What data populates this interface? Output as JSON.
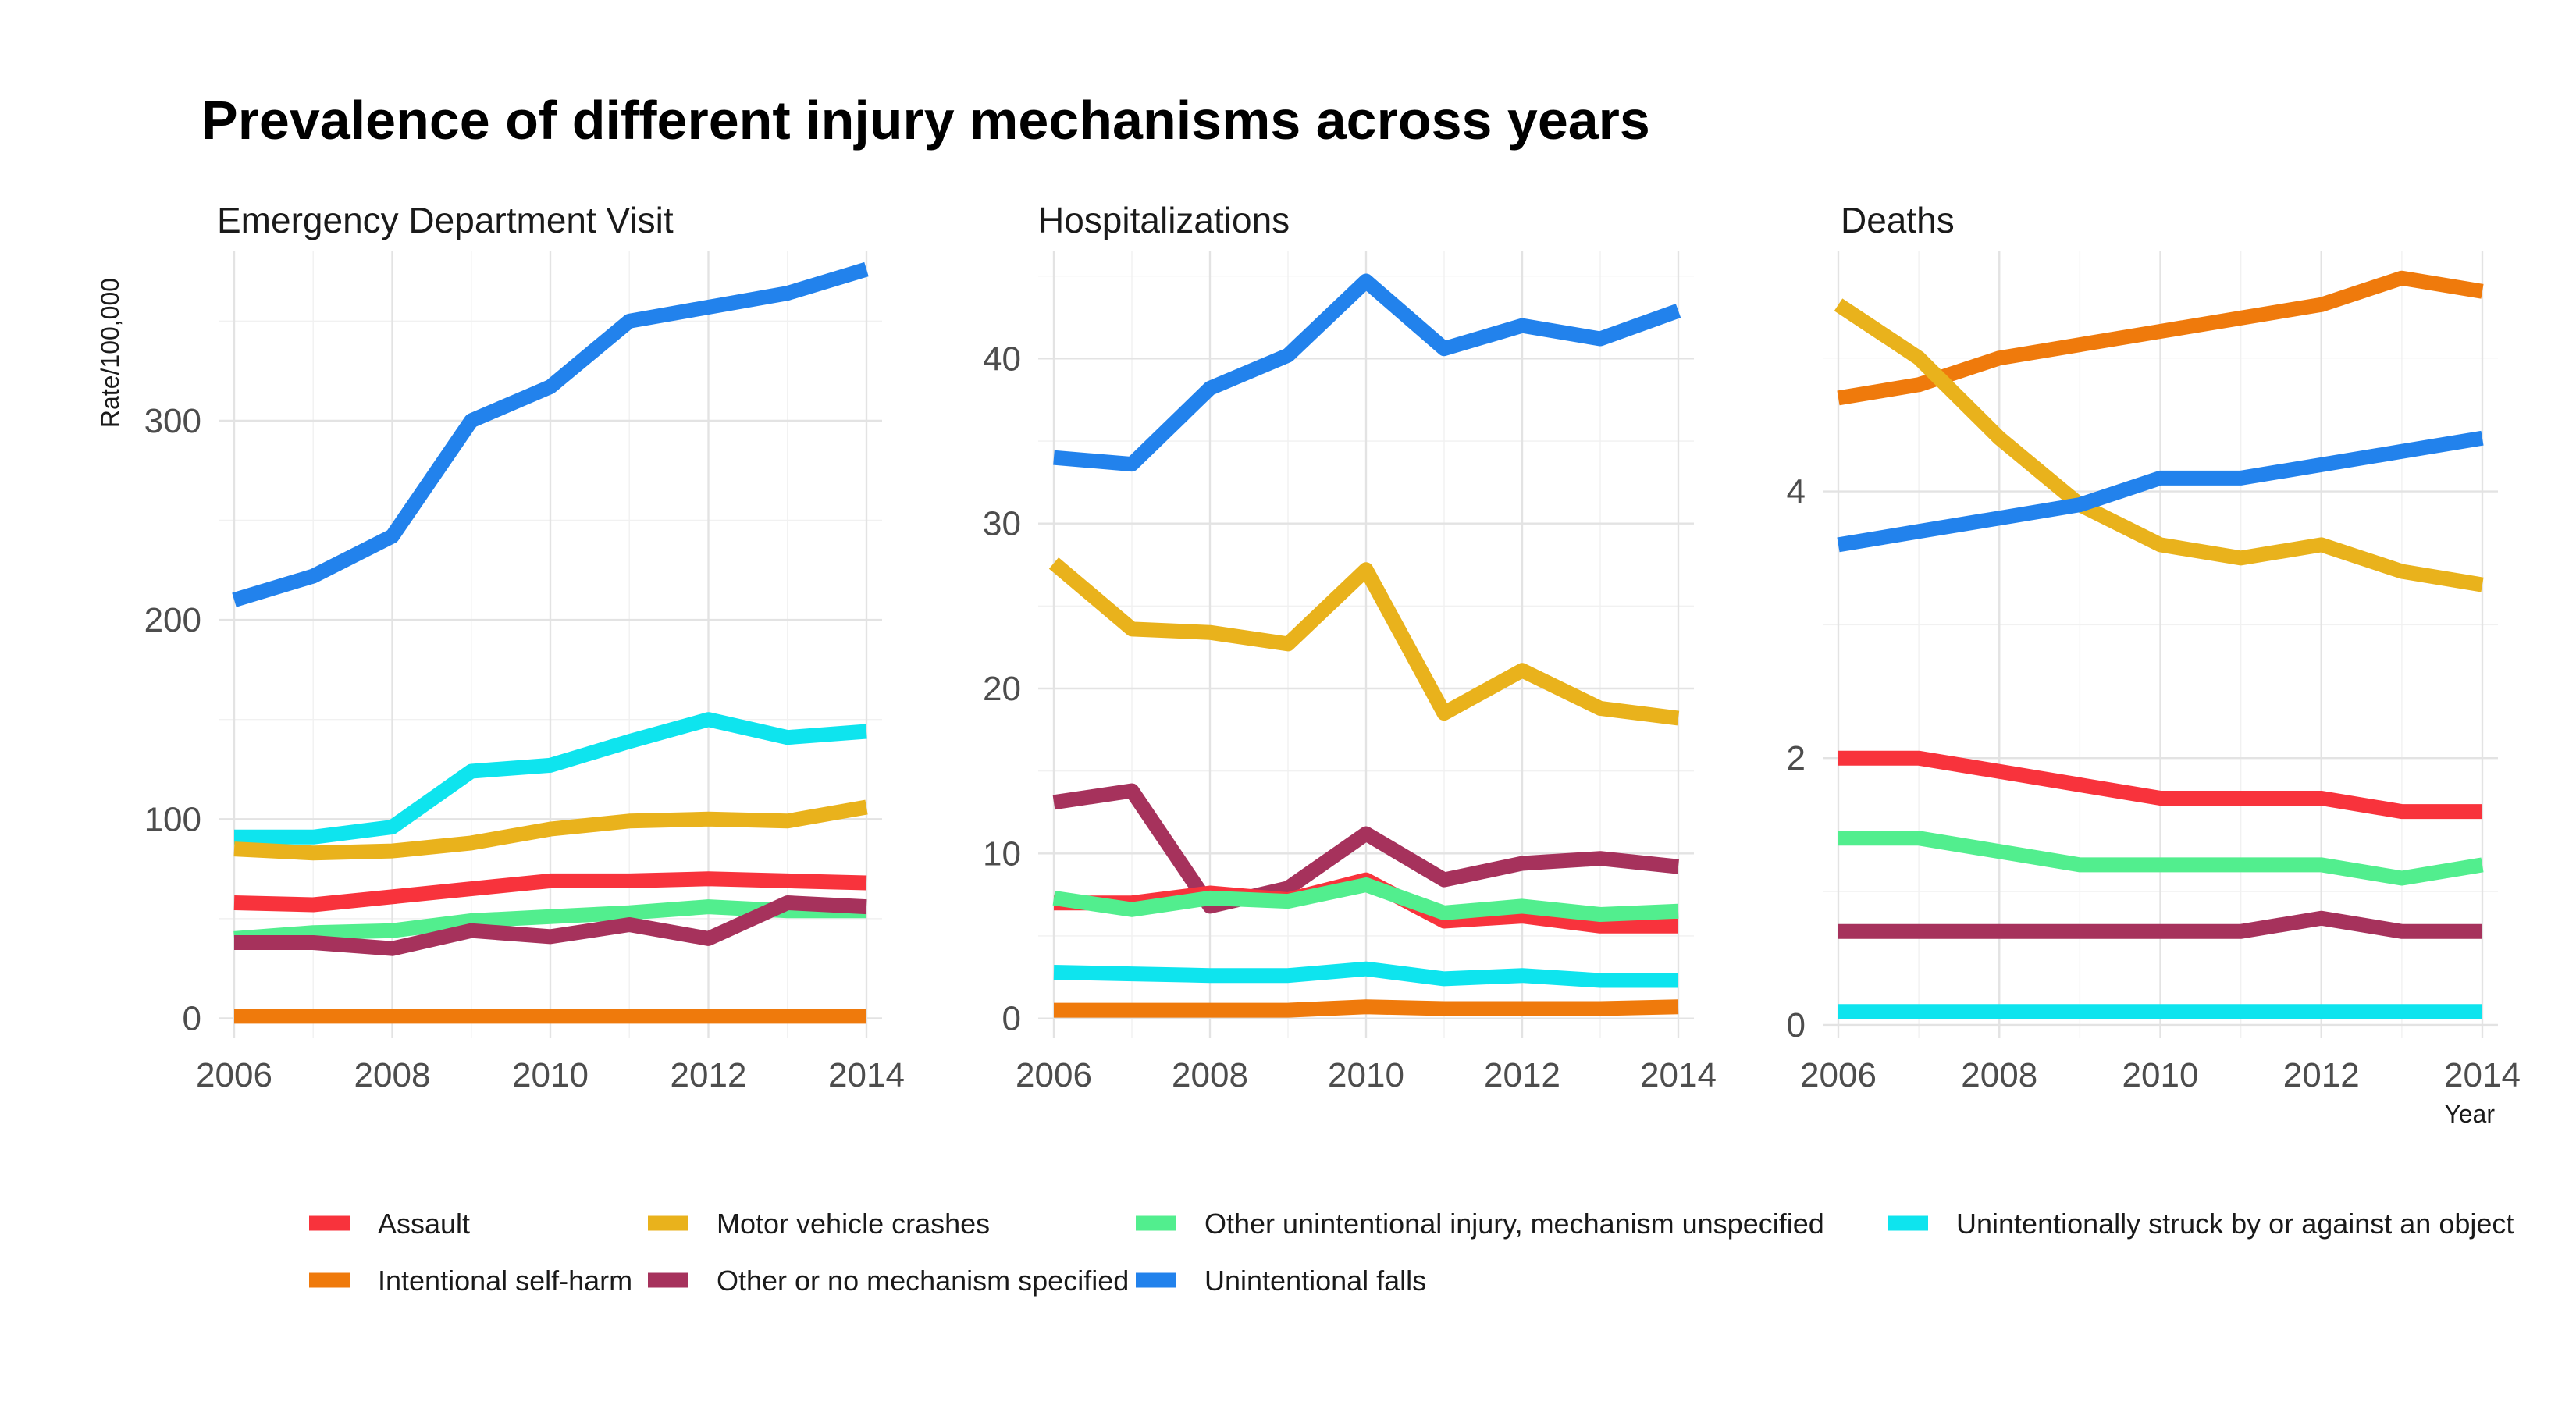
{
  "chart_data": {
    "type": "line",
    "title": "Prevalence of different injury mechanisms across years",
    "ylabel": "Rate/100,000",
    "xlabel": "Year",
    "x": [
      2006,
      2007,
      2008,
      2009,
      2010,
      2011,
      2012,
      2013,
      2014
    ],
    "x_ticks": [
      2006,
      2008,
      2010,
      2012,
      2014
    ],
    "x_tick_labels": [
      "2006",
      "2008",
      "2010",
      "2012",
      "2014"
    ],
    "legend_position": "bottom",
    "grid": true,
    "legend": [
      {
        "name": "Assault",
        "color": "#f8333c"
      },
      {
        "name": "Intentional self-harm",
        "color": "#ef7a0c"
      },
      {
        "name": "Motor vehicle crashes",
        "color": "#e9b21c"
      },
      {
        "name": "Other or no mechanism specified",
        "color": "#a6325c"
      },
      {
        "name": "Other unintentional injury, mechanism unspecified",
        "color": "#52ee8e"
      },
      {
        "name": "Unintentional falls",
        "color": "#2282ec"
      },
      {
        "name": "Unintentionally struck by or against an object",
        "color": "#0ee4ee"
      }
    ],
    "panels": [
      {
        "title": "Emergency Department Visit",
        "ylim": [
          -10,
          385
        ],
        "y_ticks": [
          0,
          100,
          200,
          300
        ],
        "y_tick_labels": [
          "0",
          "100",
          "200",
          "300"
        ],
        "series": [
          {
            "name": "Unintentional falls",
            "values": [
              210,
              222,
              242,
              300,
              317,
              350,
              357,
              364,
              376
            ]
          },
          {
            "name": "Unintentionally struck by or against an object",
            "values": [
              91,
              91,
              96,
              124,
              127,
              139,
              150,
              141,
              144
            ]
          },
          {
            "name": "Motor vehicle crashes",
            "values": [
              85,
              83,
              84,
              88,
              95,
              99,
              100,
              99,
              106
            ]
          },
          {
            "name": "Assault",
            "values": [
              58,
              57,
              61,
              65,
              69,
              69,
              70,
              69,
              68
            ]
          },
          {
            "name": "Other unintentional injury, mechanism unspecified",
            "values": [
              40,
              43,
              44,
              49,
              51,
              53,
              56,
              54,
              54
            ]
          },
          {
            "name": "Other or no mechanism specified",
            "values": [
              38,
              38,
              35,
              44,
              41,
              47,
              40,
              58,
              56
            ]
          },
          {
            "name": "Intentional self-harm",
            "values": [
              1,
              1,
              1,
              1,
              1,
              1,
              1,
              1,
              1
            ]
          }
        ]
      },
      {
        "title": "Hospitalizations",
        "ylim": [
          -1.2,
          46.5
        ],
        "y_ticks": [
          0,
          10,
          20,
          30,
          40
        ],
        "y_tick_labels": [
          "0",
          "10",
          "20",
          "30",
          "40"
        ],
        "series": [
          {
            "name": "Unintentional falls",
            "values": [
              34,
              33.6,
              38.2,
              40.2,
              44.7,
              40.6,
              42,
              41.2,
              42.9
            ]
          },
          {
            "name": "Motor vehicle crashes",
            "values": [
              27.6,
              23.6,
              23.4,
              22.7,
              27.2,
              18.5,
              21.1,
              18.8,
              18.2
            ]
          },
          {
            "name": "Other or no mechanism specified",
            "values": [
              13.1,
              13.8,
              6.8,
              7.9,
              11.2,
              8.4,
              9.4,
              9.7,
              9.2
            ]
          },
          {
            "name": "Assault",
            "values": [
              7,
              7,
              7.6,
              7.2,
              8.4,
              5.9,
              6.2,
              5.6,
              5.6
            ]
          },
          {
            "name": "Other unintentional injury, mechanism unspecified",
            "values": [
              7.3,
              6.6,
              7.3,
              7.1,
              8.1,
              6.4,
              6.8,
              6.3,
              6.5
            ]
          },
          {
            "name": "Unintentionally struck by or against an object",
            "values": [
              2.8,
              2.7,
              2.6,
              2.6,
              3,
              2.4,
              2.6,
              2.3,
              2.3
            ]
          },
          {
            "name": "Intentional self-harm",
            "values": [
              0.5,
              0.5,
              0.5,
              0.5,
              0.7,
              0.6,
              0.6,
              0.6,
              0.7
            ]
          }
        ]
      },
      {
        "title": "Deaths",
        "ylim": [
          -0.1,
          5.8
        ],
        "y_ticks": [
          0,
          2,
          4
        ],
        "y_tick_labels": [
          "0",
          "2",
          "4"
        ],
        "series": [
          {
            "name": "Intentional self-harm",
            "values": [
              4.7,
              4.8,
              5,
              5.1,
              5.2,
              5.3,
              5.4,
              5.6,
              5.5
            ]
          },
          {
            "name": "Motor vehicle crashes",
            "values": [
              5.4,
              5,
              4.4,
              3.9,
              3.6,
              3.5,
              3.6,
              3.4,
              3.3
            ]
          },
          {
            "name": "Unintentional falls",
            "values": [
              3.6,
              3.7,
              3.8,
              3.9,
              4.1,
              4.1,
              4.2,
              4.3,
              4.4
            ]
          },
          {
            "name": "Assault",
            "values": [
              2,
              2,
              1.9,
              1.8,
              1.7,
              1.7,
              1.7,
              1.6,
              1.6
            ]
          },
          {
            "name": "Other unintentional injury, mechanism unspecified",
            "values": [
              1.4,
              1.4,
              1.3,
              1.2,
              1.2,
              1.2,
              1.2,
              1.1,
              1.2
            ]
          },
          {
            "name": "Other or no mechanism specified",
            "values": [
              0.7,
              0.7,
              0.7,
              0.7,
              0.7,
              0.7,
              0.8,
              0.7,
              0.7
            ]
          },
          {
            "name": "Unintentionally struck by or against an object",
            "values": [
              0.1,
              0.1,
              0.1,
              0.1,
              0.1,
              0.1,
              0.1,
              0.1,
              0.1
            ]
          }
        ]
      }
    ]
  }
}
